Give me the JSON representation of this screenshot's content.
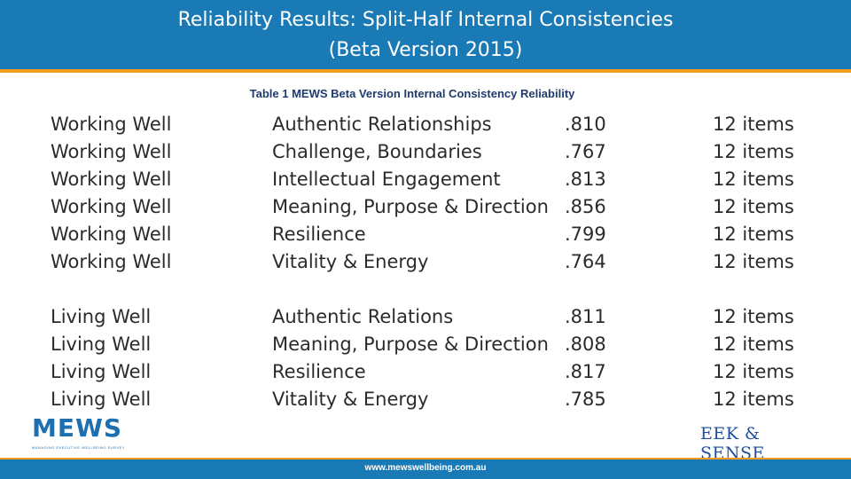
{
  "header": {
    "title_line1": "Reliability Results: Split-Half Internal Consistencies",
    "title_line2": "(Beta Version 2015)"
  },
  "table": {
    "caption": "Table 1 MEWS Beta Version Internal Consistency Reliability",
    "rows": [
      {
        "group": "Working Well",
        "scale": "Authentic Relationships",
        "value": ".810",
        "items": "12 items"
      },
      {
        "group": "Working Well",
        "scale": "Challenge, Boundaries",
        "value": ".767",
        "items": "12 items"
      },
      {
        "group": "Working Well",
        "scale": "Intellectual Engagement",
        "value": ".813",
        "items": "12 items"
      },
      {
        "group": "Working Well",
        "scale": "Meaning, Purpose & Direction",
        "value": ".856",
        "items": "12 items"
      },
      {
        "group": "Working Well",
        "scale": "Resilience",
        "value": ".799",
        "items": "12 items"
      },
      {
        "group": "Working Well",
        "scale": "Vitality & Energy",
        "value": ".764",
        "items": "12 items"
      },
      {
        "group": "Living Well",
        "scale": "Authentic Relations",
        "value": ".811",
        "items": "12 items"
      },
      {
        "group": "Living Well",
        "scale": "Meaning, Purpose & Direction",
        "value": ".808",
        "items": "12 items"
      },
      {
        "group": "Living Well",
        "scale": "Resilience",
        "value": ".817",
        "items": "12 items"
      },
      {
        "group": "Living Well",
        "scale": "Vitality & Energy",
        "value": ".785",
        "items": "12 items"
      }
    ]
  },
  "logos": {
    "mews": "MEWS",
    "mews_tagline": "MANAGING EXECUTIVE WELLBEING SURVEY",
    "eek": "EEK & SENSE"
  },
  "footer": {
    "url": "www.mewswellbeing.com.au"
  }
}
